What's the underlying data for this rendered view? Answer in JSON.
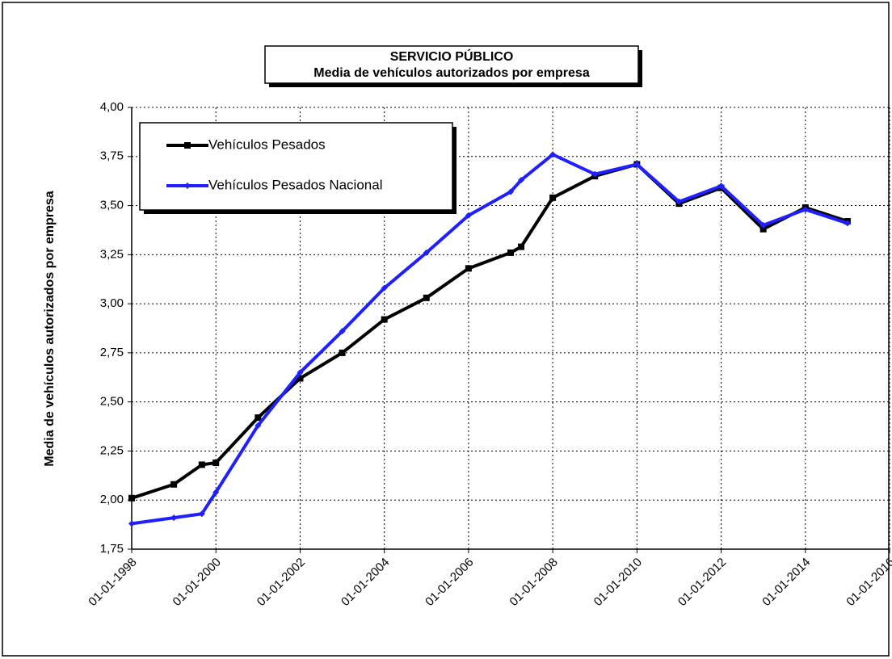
{
  "chart_data": {
    "type": "line",
    "title": "SERVICIO PÚBLICO",
    "subtitle": "Media de vehículos autorizados por empresa",
    "y_label": "Media de vehículos autorizados por empresa",
    "x": [
      "01-01-1998",
      "01-01-1999",
      "01-09-1999",
      "01-01-2000",
      "01-01-2001",
      "01-01-2002",
      "01-01-2003",
      "01-01-2004",
      "01-01-2005",
      "01-01-2006",
      "01-01-2007",
      "01-04-2007",
      "01-01-2008",
      "01-01-2009",
      "01-01-2010",
      "01-01-2011",
      "01-01-2012",
      "01-01-2013",
      "01-01-2014",
      "01-01-2015"
    ],
    "series": [
      {
        "name": "Vehículos Pesados",
        "color": "#000000",
        "marker": "square",
        "values": [
          2.01,
          2.08,
          2.18,
          2.19,
          2.42,
          2.62,
          2.75,
          2.92,
          3.03,
          3.18,
          3.26,
          3.29,
          3.54,
          3.65,
          3.71,
          3.51,
          3.59,
          3.38,
          3.49,
          3.42
        ]
      },
      {
        "name": "Vehículos Pesados Nacional",
        "color": "#1f1fff",
        "marker": "diamond",
        "values": [
          1.88,
          1.91,
          1.93,
          2.04,
          2.38,
          2.65,
          2.86,
          3.08,
          3.26,
          3.45,
          3.57,
          3.63,
          3.76,
          3.66,
          3.71,
          3.52,
          3.6,
          3.4,
          3.48,
          3.41
        ]
      }
    ],
    "xlim": [
      "01-01-1998",
      "01-01-2016"
    ],
    "xticks": [
      "01-01-1998",
      "01-01-2000",
      "01-01-2002",
      "01-01-2004",
      "01-01-2006",
      "01-01-2008",
      "01-01-2010",
      "01-01-2012",
      "01-01-2014",
      "01-01-2016"
    ],
    "ylim": [
      1.75,
      4
    ],
    "yticks": [
      {
        "value": 1.75,
        "label": "1,75"
      },
      {
        "value": 2,
        "label": "2,00"
      },
      {
        "value": 2.25,
        "label": "2,25"
      },
      {
        "value": 2.5,
        "label": "2,50"
      },
      {
        "value": 2.75,
        "label": "2,75"
      },
      {
        "value": 3,
        "label": "3,00"
      },
      {
        "value": 3.25,
        "label": "3,25"
      },
      {
        "value": 3.5,
        "label": "3,50"
      },
      {
        "value": 3.75,
        "label": "3,75"
      },
      {
        "value": 4,
        "label": "4,00"
      }
    ],
    "grid": true,
    "legend": "upper left"
  }
}
